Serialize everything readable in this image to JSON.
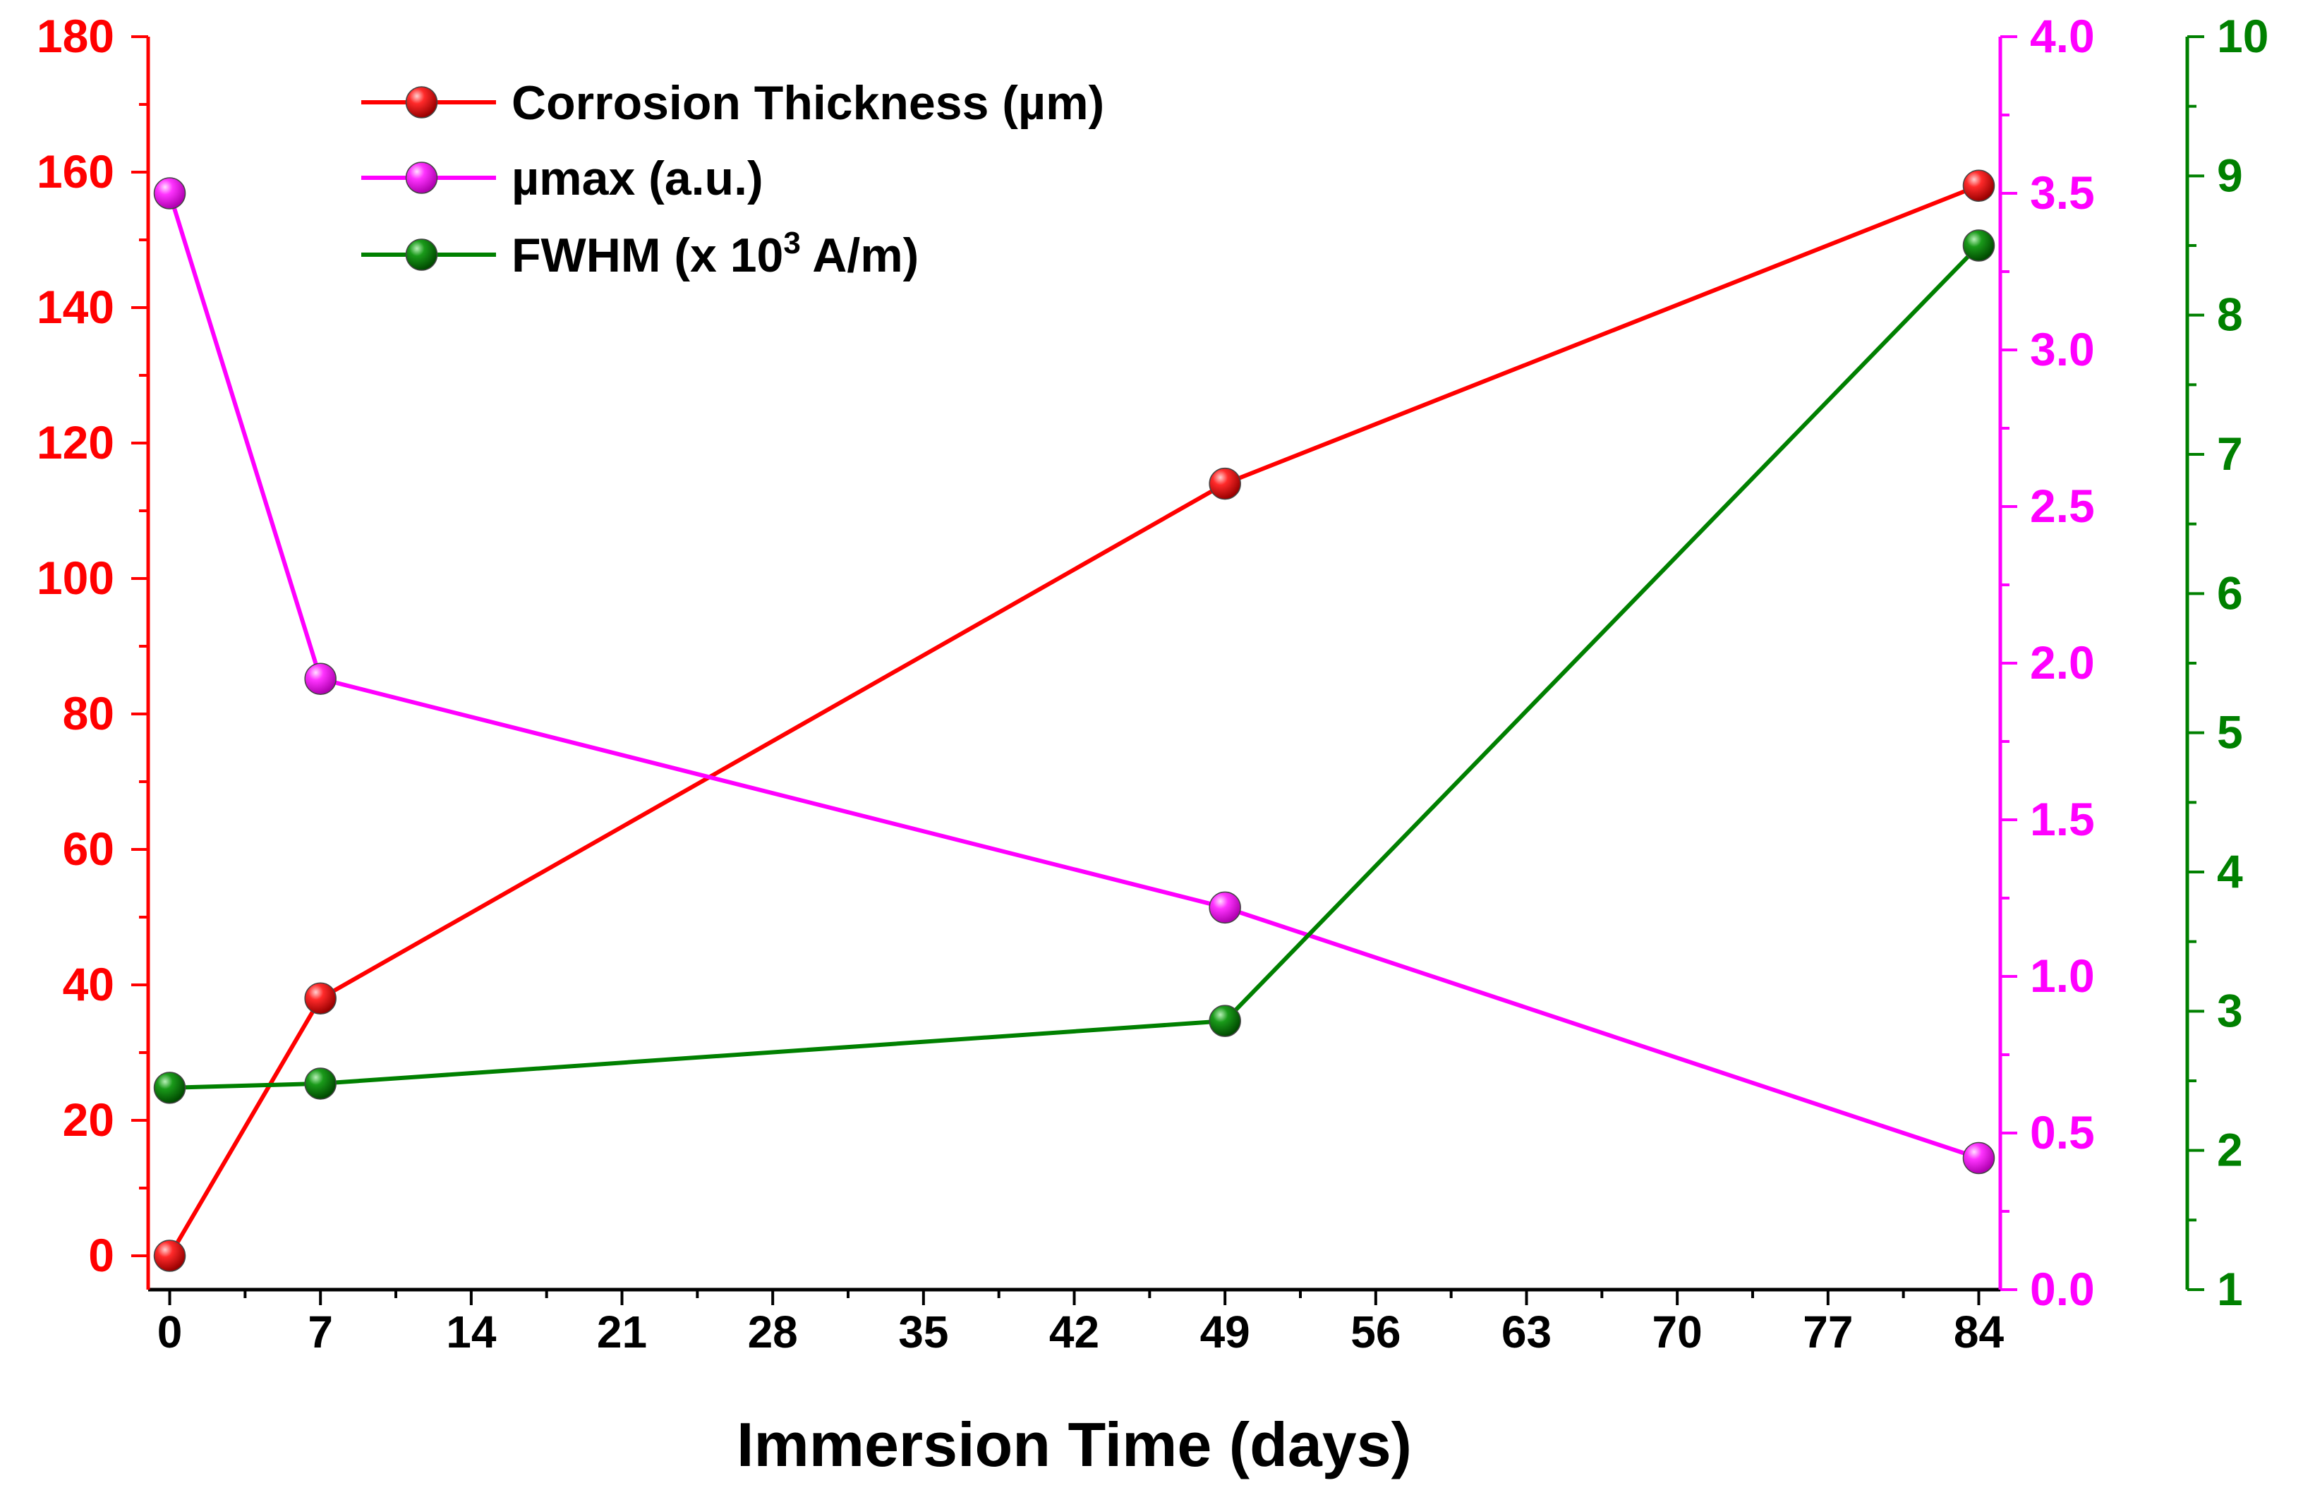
{
  "chart_data": {
    "type": "line",
    "x": [
      0,
      7,
      49,
      84
    ],
    "xlabel": "Immersion Time (days)",
    "xlim": [
      -1,
      85
    ],
    "xticks": [
      0,
      7,
      14,
      21,
      28,
      35,
      42,
      49,
      56,
      63,
      70,
      77,
      84
    ],
    "xtick_labels": [
      "0",
      "7",
      "14",
      "21",
      "28",
      "35",
      "42",
      "49",
      "56",
      "63",
      "70",
      "77",
      "84"
    ],
    "grid": false,
    "legend_position": "top-left",
    "series": [
      {
        "name": "Corrosion Thickness (µm)",
        "axis": "left",
        "color": "#ff0000",
        "values": [
          0,
          38,
          114,
          158
        ]
      },
      {
        "name": "µmax (a.u.)",
        "axis": "right1",
        "color": "#ff00ff",
        "values": [
          3.5,
          1.95,
          1.22,
          0.42
        ]
      },
      {
        "name_prefix": "FWHM (x 10",
        "name_superscript": "3",
        "name_suffix": " A/m)",
        "axis": "right2",
        "color": "#008000",
        "values": [
          2.45,
          2.48,
          2.93,
          8.5
        ]
      }
    ],
    "axes": {
      "left": {
        "color": "#ff0000",
        "ylim": [
          -5,
          180
        ],
        "ticks": [
          0,
          20,
          40,
          60,
          80,
          100,
          120,
          140,
          160,
          180
        ],
        "tick_labels": [
          "0",
          "20",
          "40",
          "60",
          "80",
          "100",
          "120",
          "140",
          "160",
          "180"
        ]
      },
      "right1": {
        "color": "#ff00ff",
        "ylim": [
          0.0,
          4.0
        ],
        "ticks": [
          0.0,
          0.5,
          1.0,
          1.5,
          2.0,
          2.5,
          3.0,
          3.5,
          4.0
        ],
        "tick_labels": [
          "0.0",
          "0.5",
          "1.0",
          "1.5",
          "2.0",
          "2.5",
          "3.0",
          "3.5",
          "4.0"
        ]
      },
      "right2": {
        "color": "#008000",
        "ylim": [
          1,
          10
        ],
        "ticks": [
          1,
          2,
          3,
          4,
          5,
          6,
          7,
          8,
          9,
          10
        ],
        "tick_labels": [
          "1",
          "2",
          "3",
          "4",
          "5",
          "6",
          "7",
          "8",
          "9",
          "10"
        ]
      }
    }
  }
}
